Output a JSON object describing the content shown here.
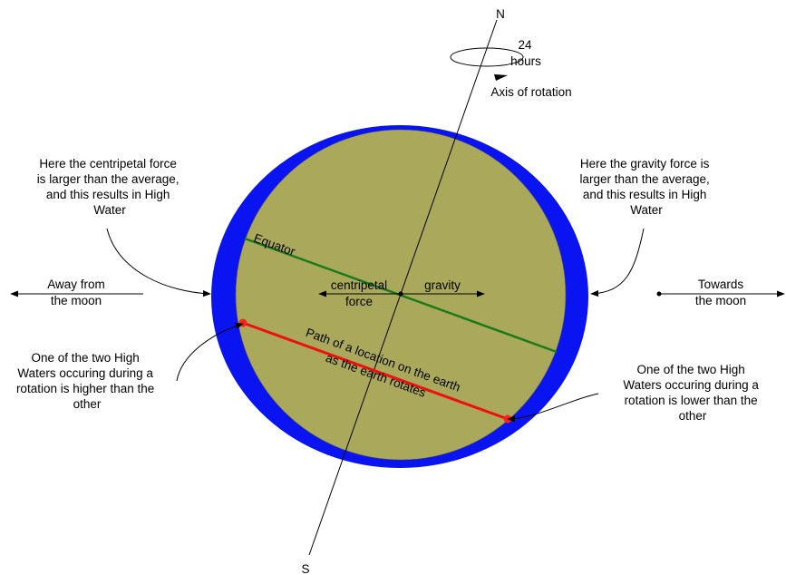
{
  "labels": {
    "north": "N",
    "south": "S",
    "rotation_hours_1": "24",
    "rotation_hours_2": "hours",
    "axis_of_rotation": "Axis of rotation",
    "equator": "Equator",
    "centripetal_1": "centripetal",
    "centripetal_2": "force",
    "gravity": "gravity",
    "path_1": "Path of a location on the earth",
    "path_2": "as the earth rotates",
    "away_1": "Away from",
    "away_2": "the moon",
    "towards_1": "Towards",
    "towards_2": "the moon"
  },
  "notes": {
    "top_left": [
      "Here the centripetal force",
      "is larger than the average,",
      "and this results in High",
      "Water"
    ],
    "top_right": [
      "Here the gravity force is",
      "larger than the average,",
      "and this results in High",
      "Water"
    ],
    "bottom_left": [
      "One of the two High",
      "Waters occuring during a",
      "rotation is higher than the",
      "other"
    ],
    "bottom_right": [
      "One of the two High",
      "Waters occuring during a",
      "rotation is lower than the",
      "other"
    ]
  },
  "colors": {
    "water": "#0a14f0",
    "earth": "#aaa95b",
    "equator": "#1a7a1a",
    "path": "#ee1010",
    "path_dot": "#ff2020"
  }
}
